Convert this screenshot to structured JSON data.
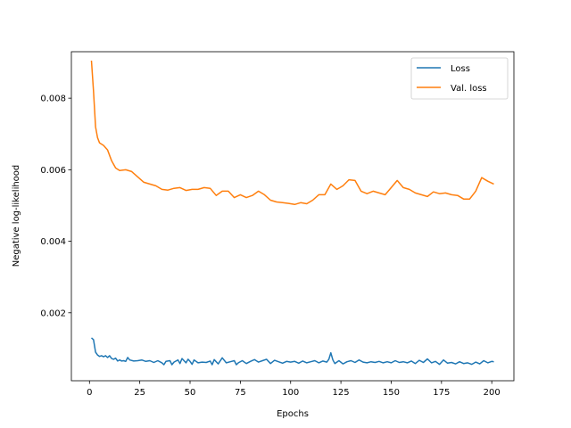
{
  "chart_data": {
    "type": "line",
    "title": "",
    "xlabel": "Epochs",
    "ylabel": "Negative log-likelihood",
    "xlim": [
      -9,
      211
    ],
    "ylim": [
      0.0001,
      0.0093
    ],
    "xticks": [
      0,
      25,
      50,
      75,
      100,
      125,
      150,
      175,
      200
    ],
    "xtick_labels": [
      "0",
      "25",
      "50",
      "75",
      "100",
      "125",
      "150",
      "175",
      "200"
    ],
    "yticks": [
      0.002,
      0.004,
      0.006,
      0.008
    ],
    "ytick_labels": [
      "0.002",
      "0.004",
      "0.006",
      "0.008"
    ],
    "grid": false,
    "legend_position": "top-right",
    "series": [
      {
        "name": "Loss",
        "color": "#1f77b4",
        "points": [
          [
            1,
            0.0013
          ],
          [
            2,
            0.00125
          ],
          [
            3,
            0.0009
          ],
          [
            4,
            0.00082
          ],
          [
            5,
            0.00078
          ],
          [
            6,
            0.0008
          ],
          [
            7,
            0.00077
          ],
          [
            8,
            0.0008
          ],
          [
            9,
            0.00075
          ],
          [
            10,
            0.0008
          ],
          [
            11,
            0.00072
          ],
          [
            12,
            0.0007
          ],
          [
            13,
            0.00073
          ],
          [
            14,
            0.00065
          ],
          [
            15,
            0.00068
          ],
          [
            16,
            0.00065
          ],
          [
            17,
            0.00066
          ],
          [
            18,
            0.00064
          ],
          [
            19,
            0.00075
          ],
          [
            20,
            0.00068
          ],
          [
            22,
            0.00065
          ],
          [
            24,
            0.00066
          ],
          [
            26,
            0.00068
          ],
          [
            28,
            0.00064
          ],
          [
            30,
            0.00066
          ],
          [
            32,
            0.00061
          ],
          [
            34,
            0.00066
          ],
          [
            36,
            0.0006
          ],
          [
            37,
            0.00055
          ],
          [
            38,
            0.00064
          ],
          [
            40,
            0.00066
          ],
          [
            41,
            0.00055
          ],
          [
            42,
            0.00062
          ],
          [
            44,
            0.00068
          ],
          [
            45,
            0.00058
          ],
          [
            46,
            0.00072
          ],
          [
            48,
            0.0006
          ],
          [
            49,
            0.0007
          ],
          [
            50,
            0.00064
          ],
          [
            51,
            0.00056
          ],
          [
            52,
            0.00068
          ],
          [
            54,
            0.0006
          ],
          [
            56,
            0.00062
          ],
          [
            58,
            0.00061
          ],
          [
            60,
            0.00065
          ],
          [
            61,
            0.00055
          ],
          [
            62,
            0.00069
          ],
          [
            64,
            0.00057
          ],
          [
            66,
            0.00074
          ],
          [
            68,
            0.0006
          ],
          [
            70,
            0.00063
          ],
          [
            72,
            0.00066
          ],
          [
            73,
            0.00055
          ],
          [
            74,
            0.0006
          ],
          [
            76,
            0.00066
          ],
          [
            78,
            0.00058
          ],
          [
            80,
            0.00064
          ],
          [
            82,
            0.00069
          ],
          [
            84,
            0.00062
          ],
          [
            86,
            0.00066
          ],
          [
            88,
            0.0007
          ],
          [
            90,
            0.00058
          ],
          [
            92,
            0.00067
          ],
          [
            94,
            0.00063
          ],
          [
            96,
            0.00059
          ],
          [
            98,
            0.00064
          ],
          [
            100,
            0.00062
          ],
          [
            102,
            0.00064
          ],
          [
            104,
            0.00059
          ],
          [
            106,
            0.00065
          ],
          [
            108,
            0.0006
          ],
          [
            110,
            0.00063
          ],
          [
            112,
            0.00066
          ],
          [
            114,
            0.0006
          ],
          [
            116,
            0.00065
          ],
          [
            118,
            0.00062
          ],
          [
            119,
            0.0007
          ],
          [
            120,
            0.00088
          ],
          [
            121,
            0.00068
          ],
          [
            122,
            0.00058
          ],
          [
            124,
            0.00066
          ],
          [
            126,
            0.00057
          ],
          [
            128,
            0.00063
          ],
          [
            130,
            0.00066
          ],
          [
            132,
            0.00061
          ],
          [
            134,
            0.00068
          ],
          [
            136,
            0.00062
          ],
          [
            138,
            0.0006
          ],
          [
            140,
            0.00063
          ],
          [
            142,
            0.00061
          ],
          [
            144,
            0.00064
          ],
          [
            146,
            0.0006
          ],
          [
            148,
            0.00063
          ],
          [
            150,
            0.0006
          ],
          [
            152,
            0.00066
          ],
          [
            154,
            0.00061
          ],
          [
            156,
            0.00063
          ],
          [
            158,
            0.0006
          ],
          [
            160,
            0.00065
          ],
          [
            162,
            0.00058
          ],
          [
            164,
            0.00067
          ],
          [
            166,
            0.00061
          ],
          [
            168,
            0.00071
          ],
          [
            170,
            0.0006
          ],
          [
            172,
            0.00064
          ],
          [
            174,
            0.00056
          ],
          [
            176,
            0.00068
          ],
          [
            178,
            0.00059
          ],
          [
            180,
            0.00061
          ],
          [
            182,
            0.00057
          ],
          [
            184,
            0.00063
          ],
          [
            186,
            0.00058
          ],
          [
            188,
            0.0006
          ],
          [
            190,
            0.00056
          ],
          [
            192,
            0.00062
          ],
          [
            194,
            0.00057
          ],
          [
            196,
            0.00066
          ],
          [
            198,
            0.0006
          ],
          [
            200,
            0.00064
          ],
          [
            201,
            0.00063
          ]
        ]
      },
      {
        "name": "Val. loss",
        "color": "#ff7f0e",
        "points": [
          [
            1,
            0.00905
          ],
          [
            2,
            0.0082
          ],
          [
            3,
            0.0072
          ],
          [
            4,
            0.0069
          ],
          [
            5,
            0.00675
          ],
          [
            7,
            0.00668
          ],
          [
            9,
            0.00655
          ],
          [
            11,
            0.00625
          ],
          [
            13,
            0.00605
          ],
          [
            15,
            0.00598
          ],
          [
            18,
            0.006
          ],
          [
            21,
            0.00595
          ],
          [
            24,
            0.0058
          ],
          [
            27,
            0.00565
          ],
          [
            30,
            0.0056
          ],
          [
            33,
            0.00555
          ],
          [
            36,
            0.00545
          ],
          [
            39,
            0.00543
          ],
          [
            42,
            0.00548
          ],
          [
            45,
            0.0055
          ],
          [
            48,
            0.00542
          ],
          [
            51,
            0.00545
          ],
          [
            54,
            0.00545
          ],
          [
            57,
            0.0055
          ],
          [
            60,
            0.00548
          ],
          [
            63,
            0.00528
          ],
          [
            66,
            0.0054
          ],
          [
            69,
            0.0054
          ],
          [
            72,
            0.00522
          ],
          [
            75,
            0.0053
          ],
          [
            78,
            0.00522
          ],
          [
            81,
            0.00528
          ],
          [
            84,
            0.0054
          ],
          [
            87,
            0.0053
          ],
          [
            90,
            0.00515
          ],
          [
            93,
            0.0051
          ],
          [
            96,
            0.00508
          ],
          [
            99,
            0.00506
          ],
          [
            102,
            0.00503
          ],
          [
            105,
            0.00508
          ],
          [
            108,
            0.00505
          ],
          [
            111,
            0.00515
          ],
          [
            114,
            0.0053
          ],
          [
            117,
            0.0053
          ],
          [
            120,
            0.0056
          ],
          [
            123,
            0.00545
          ],
          [
            126,
            0.00555
          ],
          [
            129,
            0.00572
          ],
          [
            132,
            0.0057
          ],
          [
            135,
            0.0054
          ],
          [
            138,
            0.00533
          ],
          [
            141,
            0.0054
          ],
          [
            144,
            0.00535
          ],
          [
            147,
            0.0053
          ],
          [
            150,
            0.0055
          ],
          [
            153,
            0.0057
          ],
          [
            156,
            0.0055
          ],
          [
            159,
            0.00545
          ],
          [
            162,
            0.00535
          ],
          [
            165,
            0.0053
          ],
          [
            168,
            0.00525
          ],
          [
            171,
            0.00538
          ],
          [
            174,
            0.00533
          ],
          [
            177,
            0.00535
          ],
          [
            180,
            0.0053
          ],
          [
            183,
            0.00528
          ],
          [
            186,
            0.00518
          ],
          [
            189,
            0.00518
          ],
          [
            192,
            0.0054
          ],
          [
            195,
            0.00578
          ],
          [
            198,
            0.00568
          ],
          [
            201,
            0.0056
          ]
        ]
      }
    ]
  }
}
